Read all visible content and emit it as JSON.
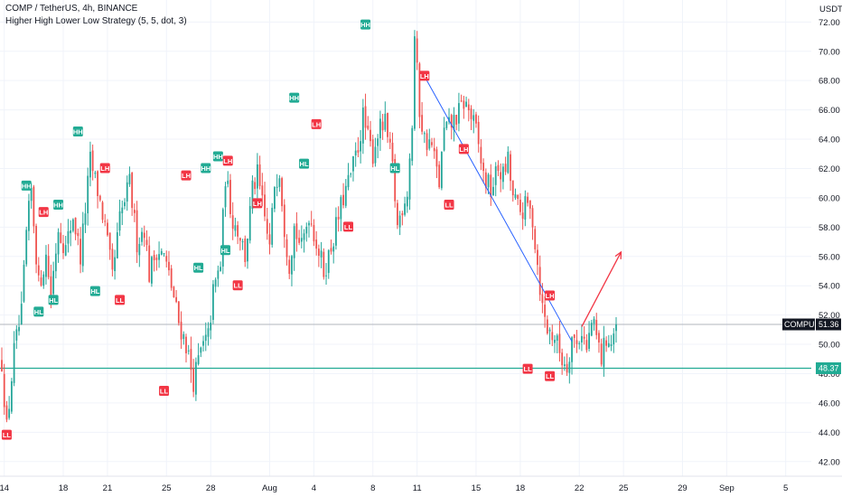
{
  "header": {
    "title": "COMP / TetherUS, 4h, BINANCE",
    "indicator": "Higher High Lower Low Strategy (5, 5, dot, 3)"
  },
  "chart_data": {
    "type": "candlestick",
    "symbol": "COMPUSDT",
    "y_axis_unit": "USDT",
    "ylim": [
      41.0,
      73.5
    ],
    "y_ticks": [
      42,
      44,
      46,
      48,
      50,
      52,
      54,
      56,
      58,
      60,
      62,
      64,
      66,
      68,
      70,
      72
    ],
    "y_tick_labels": [
      "42.00",
      "44.00",
      "46.00",
      "48.00",
      "50.00",
      "52.00",
      "54.00",
      "56.00",
      "58.00",
      "60.00",
      "62.00",
      "64.00",
      "66.00",
      "68.00",
      "70.00",
      "72.00"
    ],
    "x_ticks": [
      {
        "label": "14",
        "bar": 1
      },
      {
        "label": "18",
        "bar": 25
      },
      {
        "label": "21",
        "bar": 43
      },
      {
        "label": "25",
        "bar": 67
      },
      {
        "label": "28",
        "bar": 85
      },
      {
        "label": "Aug",
        "bar": 109
      },
      {
        "label": "4",
        "bar": 127
      },
      {
        "label": "8",
        "bar": 151
      },
      {
        "label": "11",
        "bar": 169
      },
      {
        "label": "15",
        "bar": 193
      },
      {
        "label": "18",
        "bar": 211
      },
      {
        "label": "22",
        "bar": 235
      },
      {
        "label": "25",
        "bar": 253
      },
      {
        "label": "29",
        "bar": 277
      },
      {
        "label": "Sep",
        "bar": 295
      },
      {
        "label": "5",
        "bar": 319
      }
    ],
    "bar_count": 251,
    "price_path": [
      [
        0,
        48.8
      ],
      [
        2,
        44.2
      ],
      [
        5,
        49.5
      ],
      [
        8,
        52.0
      ],
      [
        10,
        57.5
      ],
      [
        12,
        60.5
      ],
      [
        15,
        54.0
      ],
      [
        18,
        56.0
      ],
      [
        20,
        53.5
      ],
      [
        23,
        58.0
      ],
      [
        26,
        56.5
      ],
      [
        29,
        58.8
      ],
      [
        32,
        56.0
      ],
      [
        36,
        62.5
      ],
      [
        39,
        60.5
      ],
      [
        42,
        58.0
      ],
      [
        45,
        54.5
      ],
      [
        48,
        58.5
      ],
      [
        52,
        61.0
      ],
      [
        55,
        57.0
      ],
      [
        58,
        58.0
      ],
      [
        60,
        54.8
      ],
      [
        63,
        56.5
      ],
      [
        66,
        56.0
      ],
      [
        69,
        54.0
      ],
      [
        72,
        51.5
      ],
      [
        75,
        50.0
      ],
      [
        78,
        47.5
      ],
      [
        81,
        49.5
      ],
      [
        84,
        50.5
      ],
      [
        86,
        53.5
      ],
      [
        89,
        55.5
      ],
      [
        91,
        61.5
      ],
      [
        94,
        58.5
      ],
      [
        97,
        57.5
      ],
      [
        99,
        56.0
      ],
      [
        102,
        60.5
      ],
      [
        104,
        61.5
      ],
      [
        107,
        58.5
      ],
      [
        109,
        56.5
      ],
      [
        111,
        61.0
      ],
      [
        113,
        62.0
      ],
      [
        115,
        58.0
      ],
      [
        117,
        55.5
      ],
      [
        119,
        58.0
      ],
      [
        122,
        56.5
      ],
      [
        125,
        59.0
      ],
      [
        128,
        57.0
      ],
      [
        131,
        55.0
      ],
      [
        133,
        56.0
      ],
      [
        136,
        58.0
      ],
      [
        139,
        60.0
      ],
      [
        142,
        61.5
      ],
      [
        145,
        63.5
      ],
      [
        147,
        65.5
      ],
      [
        149,
        64.0
      ],
      [
        151,
        63.0
      ],
      [
        153,
        64.5
      ],
      [
        156,
        65.0
      ],
      [
        159,
        62.0
      ],
      [
        161,
        58.0
      ],
      [
        163,
        59.5
      ],
      [
        165,
        60.5
      ],
      [
        167,
        65.0
      ],
      [
        168,
        71.0
      ],
      [
        170,
        66.0
      ],
      [
        172,
        64.0
      ],
      [
        175,
        63.5
      ],
      [
        178,
        61.0
      ],
      [
        180,
        64.5
      ],
      [
        183,
        65.0
      ],
      [
        186,
        65.8
      ],
      [
        188,
        66.5
      ],
      [
        190,
        66.0
      ],
      [
        193,
        64.5
      ],
      [
        196,
        61.5
      ],
      [
        199,
        60.5
      ],
      [
        202,
        62.0
      ],
      [
        204,
        61.5
      ],
      [
        206,
        62.5
      ],
      [
        208,
        60.0
      ],
      [
        211,
        59.0
      ],
      [
        214,
        59.5
      ],
      [
        216,
        58.5
      ],
      [
        218,
        55.5
      ],
      [
        220,
        52.5
      ],
      [
        222,
        51.0
      ],
      [
        225,
        50.5
      ],
      [
        228,
        49.0
      ],
      [
        230,
        48.6
      ],
      [
        232,
        50.5
      ],
      [
        234,
        50.0
      ],
      [
        236,
        51.0
      ],
      [
        238,
        49.5
      ],
      [
        240,
        51.5
      ],
      [
        242,
        50.5
      ],
      [
        244,
        49.0
      ],
      [
        246,
        50.5
      ],
      [
        248,
        50.0
      ],
      [
        250,
        51.36
      ]
    ],
    "markers": [
      {
        "label": "LL",
        "type": "low",
        "bar": 2,
        "price": 43.8
      },
      {
        "label": "HH",
        "type": "high",
        "bar": 10,
        "price": 60.8
      },
      {
        "label": "HL",
        "type": "low",
        "bar": 15,
        "price": 52.2
      },
      {
        "label": "LH",
        "type": "high",
        "bar": 17,
        "price": 59.0
      },
      {
        "label": "HL",
        "type": "low",
        "bar": 21,
        "price": 53.0
      },
      {
        "label": "HH",
        "type": "high",
        "bar": 23,
        "price": 59.5
      },
      {
        "label": "HH",
        "type": "high",
        "bar": 31,
        "price": 64.5
      },
      {
        "label": "HL",
        "type": "low",
        "bar": 38,
        "price": 53.6
      },
      {
        "label": "LH",
        "type": "high",
        "bar": 42,
        "price": 62.0
      },
      {
        "label": "LL",
        "type": "low",
        "bar": 48,
        "price": 53.0
      },
      {
        "label": "LL",
        "type": "low",
        "bar": 66,
        "price": 46.8
      },
      {
        "label": "LH",
        "type": "high",
        "bar": 75,
        "price": 61.5
      },
      {
        "label": "HL",
        "type": "low",
        "bar": 80,
        "price": 55.2
      },
      {
        "label": "HH",
        "type": "high",
        "bar": 83,
        "price": 62.0
      },
      {
        "label": "HH",
        "type": "high",
        "bar": 88,
        "price": 62.8
      },
      {
        "label": "LH",
        "type": "high",
        "bar": 92,
        "price": 62.5
      },
      {
        "label": "HL",
        "type": "low",
        "bar": 91,
        "price": 56.4
      },
      {
        "label": "LL",
        "type": "low",
        "bar": 96,
        "price": 54.0
      },
      {
        "label": "LH",
        "type": "high",
        "bar": 104,
        "price": 59.6
      },
      {
        "label": "HH",
        "type": "high",
        "bar": 119,
        "price": 66.8
      },
      {
        "label": "HL",
        "type": "low",
        "bar": 123,
        "price": 62.3
      },
      {
        "label": "LH",
        "type": "high",
        "bar": 128,
        "price": 65.0
      },
      {
        "label": "LL",
        "type": "low",
        "bar": 141,
        "price": 58.0
      },
      {
        "label": "HH",
        "type": "high",
        "bar": 148,
        "price": 71.8
      },
      {
        "label": "HL",
        "type": "low",
        "bar": 160,
        "price": 62.0
      },
      {
        "label": "LH",
        "type": "high",
        "bar": 172,
        "price": 68.3
      },
      {
        "label": "LH",
        "type": "high",
        "bar": 188,
        "price": 63.3
      },
      {
        "label": "LL",
        "type": "low",
        "bar": 182,
        "price": 59.5
      },
      {
        "label": "LH",
        "type": "high",
        "bar": 223,
        "price": 53.3
      },
      {
        "label": "LL",
        "type": "low",
        "bar": 214,
        "price": 48.3
      },
      {
        "label": "LL",
        "type": "low",
        "bar": 223,
        "price": 47.8
      }
    ],
    "trendline": {
      "from": {
        "bar": 172,
        "price": 68.3
      },
      "to": {
        "bar": 232,
        "price": 50.2
      }
    },
    "arrow": {
      "from": {
        "bar": 236,
        "price": 51.2
      },
      "to": {
        "bar": 252,
        "price": 56.3
      }
    },
    "support_line": {
      "price": 48.37,
      "label": "48.37"
    },
    "last_price": {
      "price": 51.36,
      "label": "51.36",
      "symbol_label": "COMPUSDT"
    },
    "colors": {
      "up": "#26a69a",
      "down": "#ef5350",
      "wick_up": "#26a69a",
      "wick_down": "#ef5350",
      "high_marker": "#f23645",
      "low_marker": "#f23645",
      "hh_marker": "#22ab94",
      "hl_marker": "#22ab94",
      "trendline": "#2962ff",
      "arrow": "#f23645",
      "support": "#22ab94",
      "last_price_line": "#b2b5be",
      "last_price_tag": "#131722",
      "text": "#131722"
    }
  }
}
